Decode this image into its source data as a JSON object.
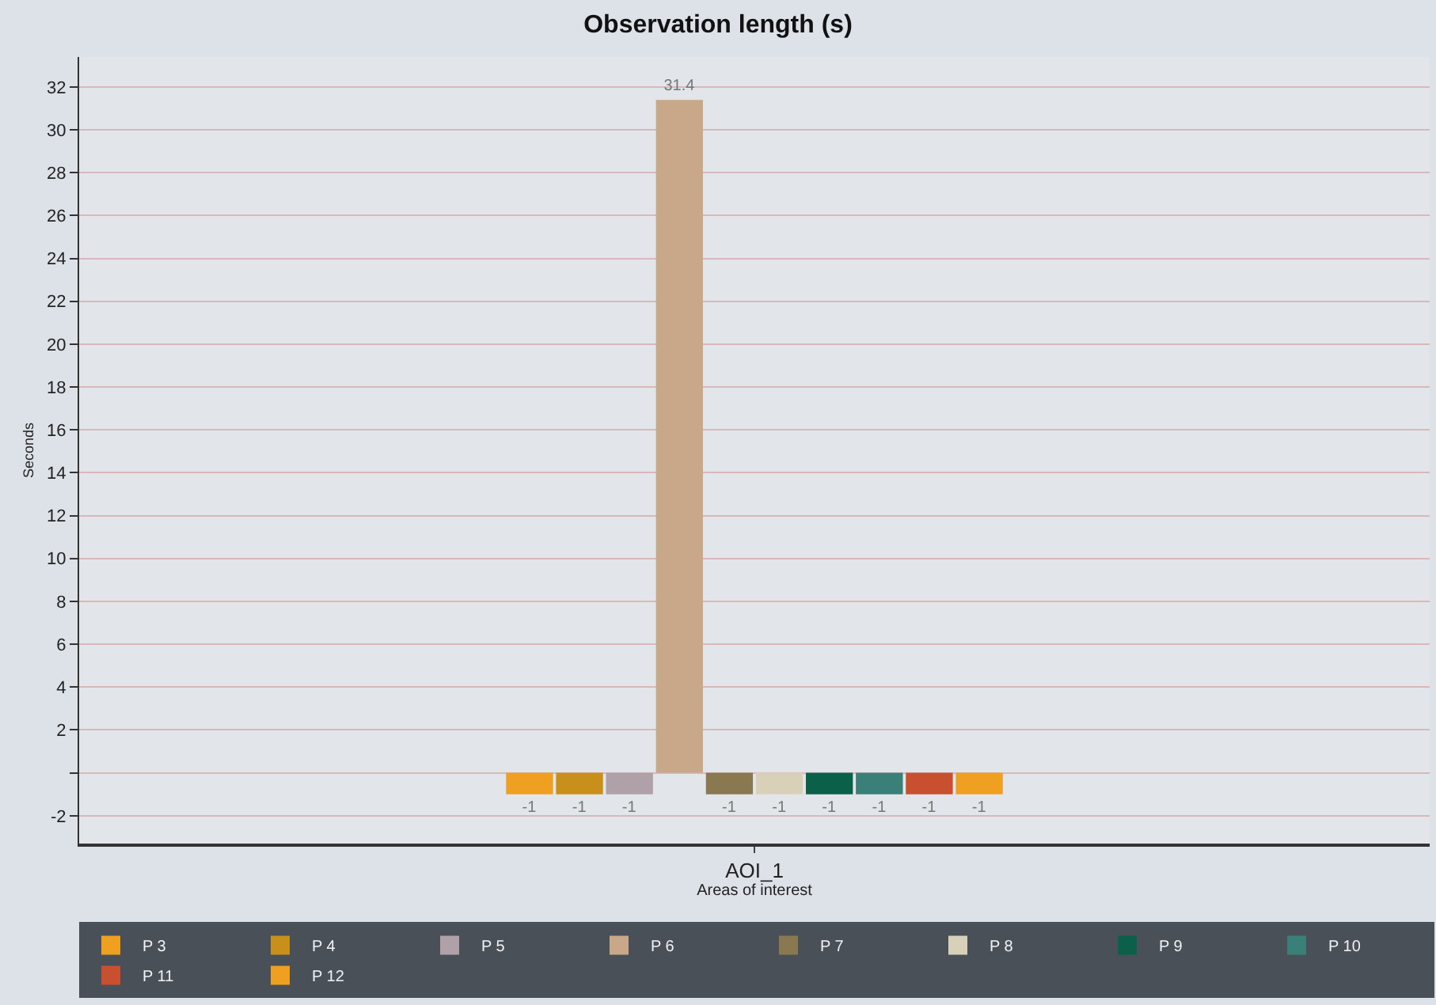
{
  "chart_data": {
    "type": "bar",
    "title": "Observation length (s)",
    "xlabel": "Areas of interest",
    "ylabel": "Seconds",
    "categories": [
      "AOI_1"
    ],
    "series": [
      {
        "name": "P 3",
        "color": "#f0a020",
        "values": [
          -1
        ]
      },
      {
        "name": "P 4",
        "color": "#c8901a",
        "values": [
          -1
        ]
      },
      {
        "name": "P 5",
        "color": "#b0a0a8",
        "values": [
          -1
        ]
      },
      {
        "name": "P 6",
        "color": "#c8a888",
        "values": [
          31.4
        ]
      },
      {
        "name": "P 7",
        "color": "#8a7850",
        "values": [
          -1
        ]
      },
      {
        "name": "P 8",
        "color": "#d8d0b8",
        "values": [
          -1
        ]
      },
      {
        "name": "P 9",
        "color": "#0a6048",
        "values": [
          -1
        ]
      },
      {
        "name": "P 10",
        "color": "#3a8078",
        "values": [
          -1
        ]
      },
      {
        "name": "P 11",
        "color": "#c85030",
        "values": [
          -1
        ]
      },
      {
        "name": "P 12",
        "color": "#f0a020",
        "values": [
          -1
        ]
      }
    ],
    "ylim": [
      -3.3,
      33.4
    ],
    "yticks": [
      -2,
      {
        "value": 0,
        "label": null
      },
      2,
      4,
      6,
      8,
      10,
      12,
      14,
      16,
      18,
      20,
      22,
      24,
      26,
      28,
      30,
      32
    ],
    "grid": "y",
    "legend": "bottom left",
    "data_labels": true
  }
}
